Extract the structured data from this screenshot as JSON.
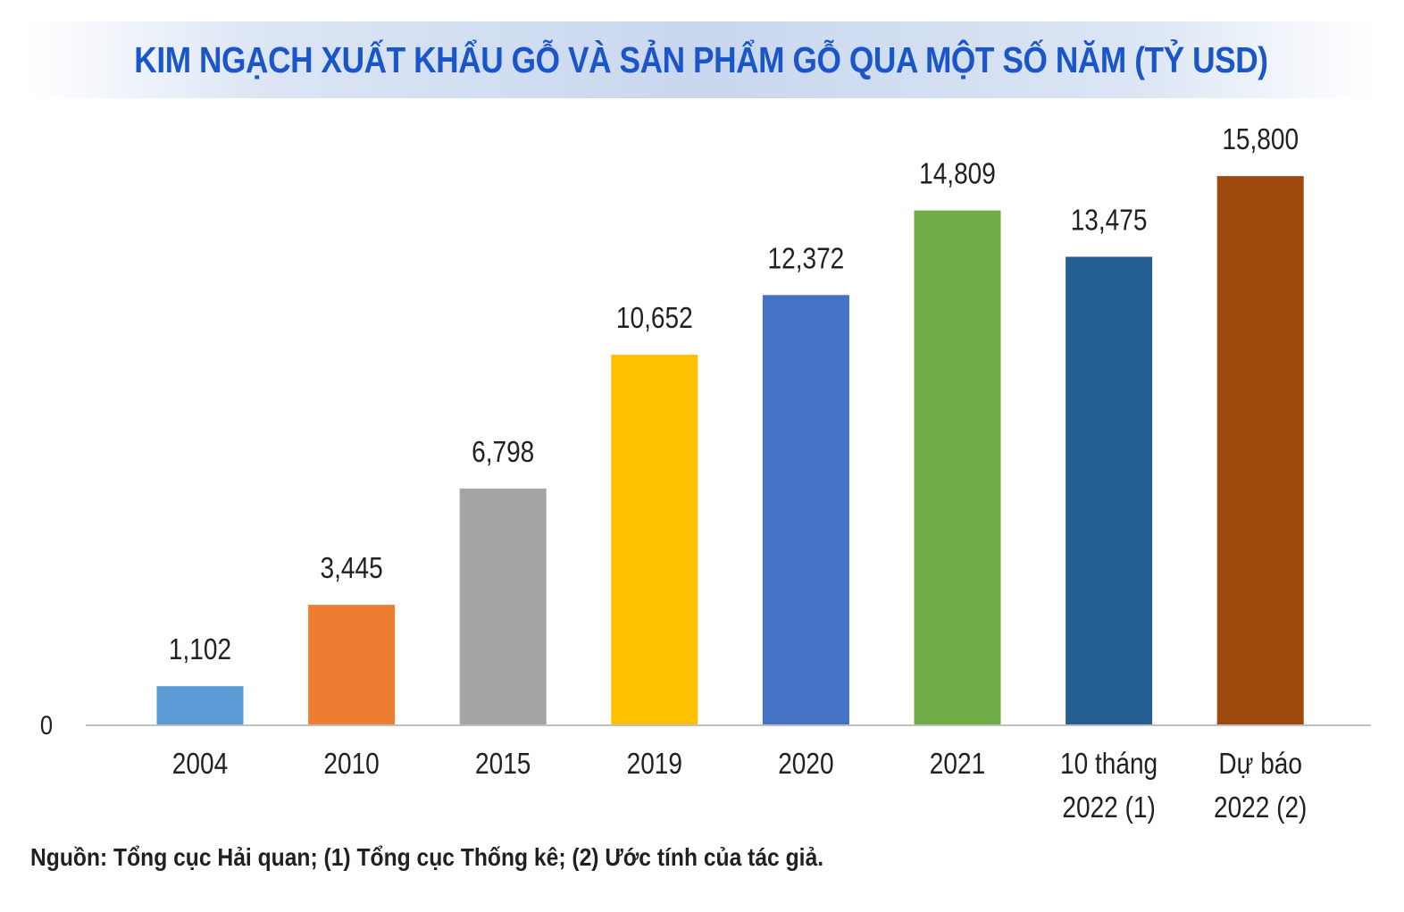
{
  "chart_data": {
    "type": "bar",
    "title": "KIM NGẠCH XUẤT KHẨU GỖ VÀ SẢN PHẨM GỖ QUA MỘT SỐ NĂM (TỶ USD)",
    "categories": [
      [
        "2004"
      ],
      [
        "2010"
      ],
      [
        "2015"
      ],
      [
        "2019"
      ],
      [
        "2020"
      ],
      [
        "2021"
      ],
      [
        "10 tháng",
        "2022 (1)"
      ],
      [
        "Dự báo",
        "2022 (2)"
      ]
    ],
    "values": [
      1.102,
      3.445,
      6.798,
      10.652,
      12.372,
      14.809,
      13.475,
      15.8
    ],
    "value_labels": [
      "1,102",
      "3,445",
      "6,798",
      "10,652",
      "12,372",
      "14,809",
      "13,475",
      "15,800"
    ],
    "colors": [
      "#5b9bd5",
      "#ed7d31",
      "#a5a5a5",
      "#ffc000",
      "#4472c4",
      "#70ad47",
      "#255e91",
      "#9e480e"
    ],
    "y_tick_labels": [
      "0"
    ],
    "ylim": [
      0,
      18.3
    ],
    "xlabel": "",
    "ylabel": "",
    "legend": "none",
    "grid": false
  },
  "source": "Nguồn: Tổng cục Hải quan; (1) Tổng cục Thống kê; (2) Ước tính của tác giả."
}
